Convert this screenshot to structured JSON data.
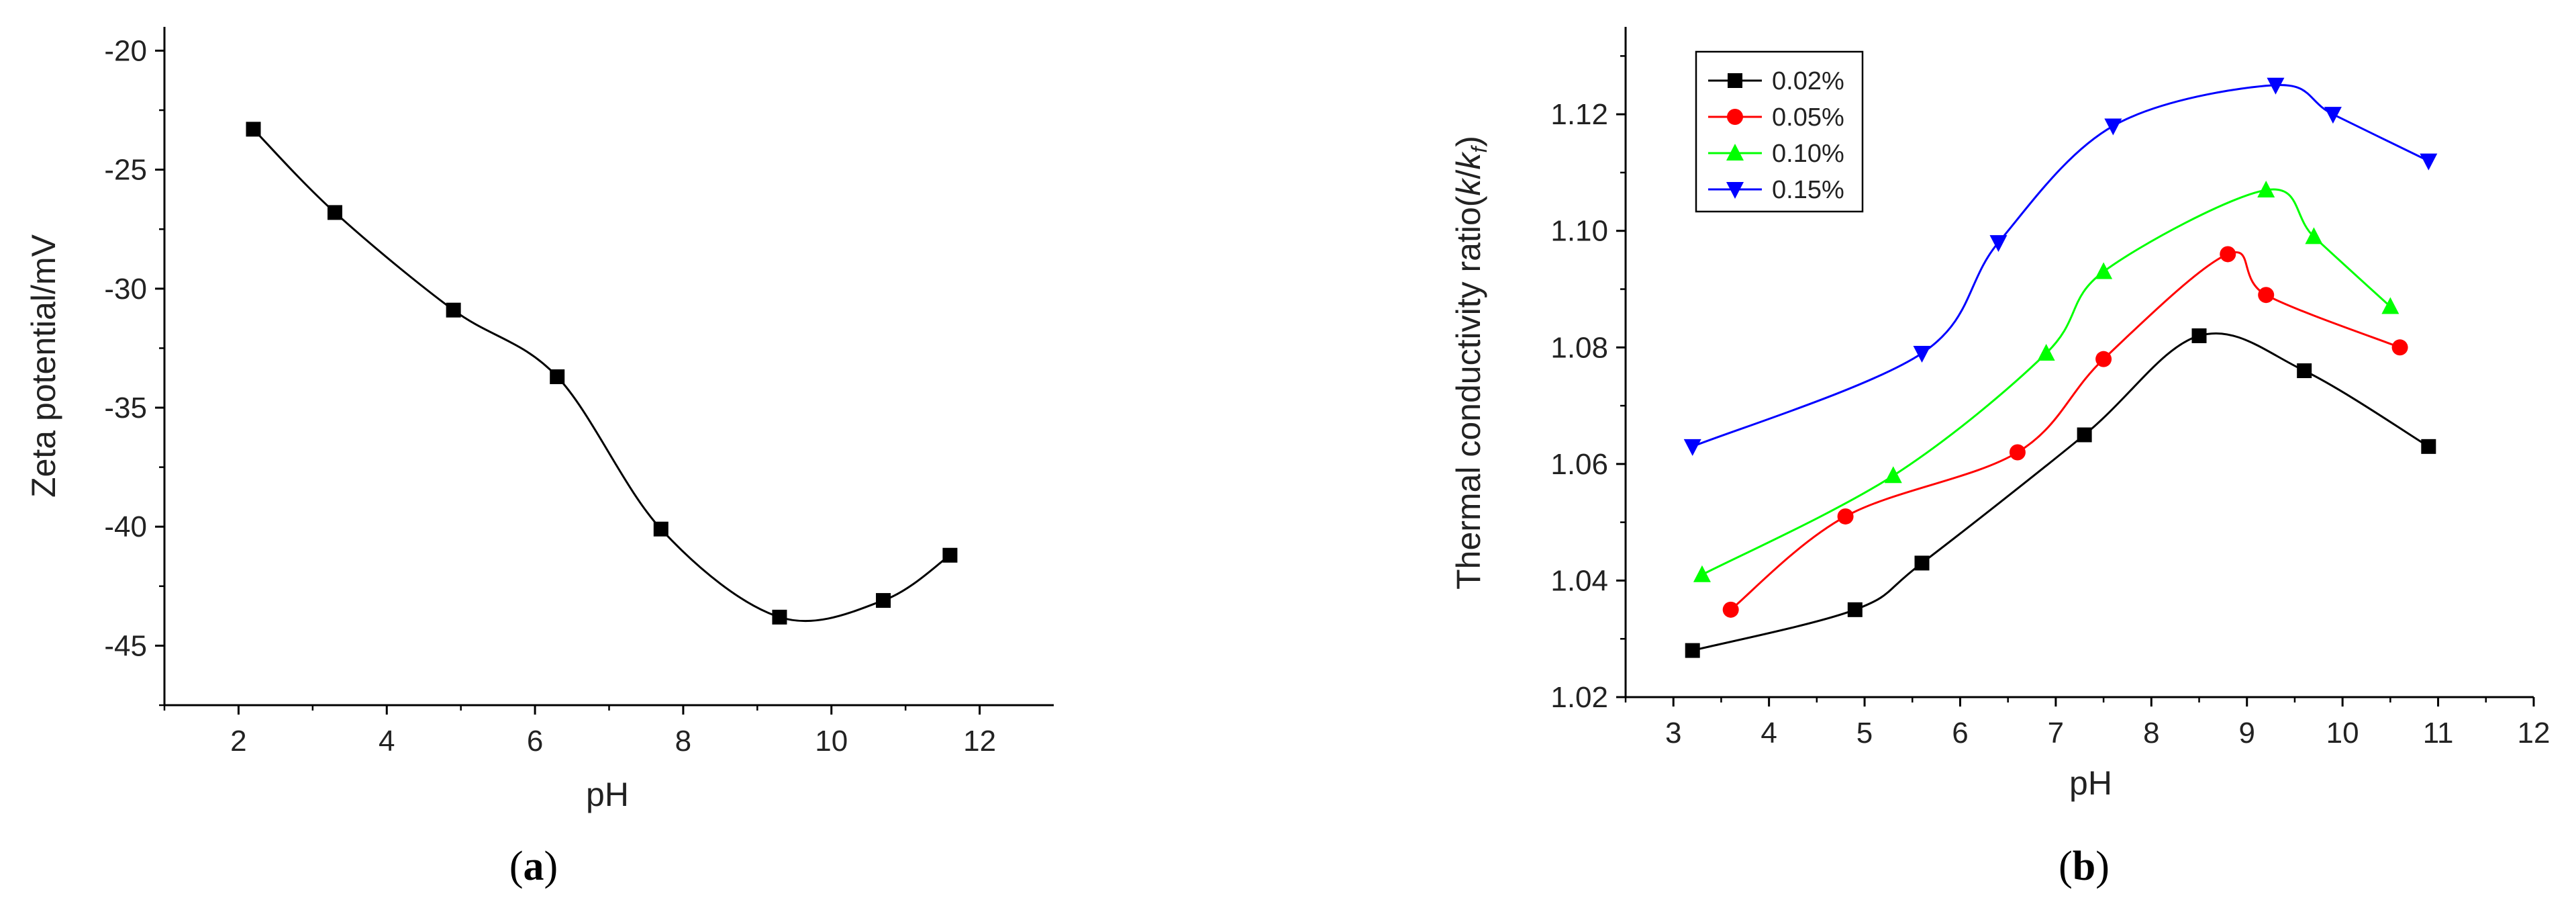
{
  "chart_data": [
    {
      "panel": "a",
      "panel_label": {
        "open": "(",
        "letter": "a",
        "close": ")"
      },
      "type": "line",
      "title": "",
      "xlabel": "pH",
      "ylabel": "Zeta potential/mV",
      "xlim": [
        1,
        13
      ],
      "ylim": [
        -47.5,
        -19
      ],
      "xticks": [
        2,
        4,
        6,
        8,
        10,
        12
      ],
      "yticks": [
        -45,
        -40,
        -35,
        -30,
        -25,
        -20
      ],
      "grid": false,
      "series": [
        {
          "name": "zeta",
          "color": "#000000",
          "marker": "square",
          "x": [
            2.2,
            3.3,
            4.9,
            6.3,
            7.7,
            9.3,
            10.7,
            11.6
          ],
          "y": [
            -23.3,
            -26.8,
            -30.9,
            -33.7,
            -40.1,
            -43.8,
            -43.1,
            -41.2
          ]
        }
      ]
    },
    {
      "panel": "b",
      "panel_label": {
        "open": "(",
        "letter": "b",
        "close": ")"
      },
      "type": "line",
      "title": "",
      "xlabel": "pH",
      "ylabel": {
        "prefix": "Thermal conductivity ratio(",
        "k": "k",
        "slash": "/",
        "kf": "k",
        "sub": "f",
        "suffix": ")"
      },
      "xlim": [
        2.5,
        12
      ],
      "ylim": [
        1.02,
        1.135
      ],
      "xticks": [
        3,
        4,
        5,
        6,
        7,
        8,
        9,
        10,
        11,
        12
      ],
      "yticks": [
        "1.02",
        "1.04",
        "1.06",
        "1.08",
        "1.10",
        "1.12"
      ],
      "legend_position": "top-left",
      "grid": false,
      "series": [
        {
          "name": "0.02%",
          "color": "#000000",
          "marker": "square",
          "x": [
            3.2,
            4.9,
            5.6,
            7.3,
            8.5,
            9.6,
            10.9
          ],
          "y": [
            1.028,
            1.035,
            1.043,
            1.065,
            1.082,
            1.076,
            1.063
          ]
        },
        {
          "name": "0.05%",
          "color": "#ff0000",
          "marker": "circle",
          "x": [
            3.6,
            4.8,
            6.6,
            7.5,
            8.8,
            9.2,
            10.6
          ],
          "y": [
            1.035,
            1.051,
            1.062,
            1.078,
            1.096,
            1.089,
            1.08
          ]
        },
        {
          "name": "0.10%",
          "color": "#00ff00",
          "marker": "triangle-up",
          "x": [
            3.3,
            5.3,
            6.9,
            7.5,
            9.2,
            9.7,
            10.5
          ],
          "y": [
            1.041,
            1.058,
            1.079,
            1.093,
            1.107,
            1.099,
            1.087
          ]
        },
        {
          "name": "0.15%",
          "color": "#0000ff",
          "marker": "triangle-down",
          "x": [
            3.2,
            5.6,
            6.4,
            7.6,
            9.3,
            9.9,
            10.9
          ],
          "y": [
            1.063,
            1.079,
            1.098,
            1.118,
            1.125,
            1.12,
            1.112
          ]
        }
      ]
    }
  ]
}
